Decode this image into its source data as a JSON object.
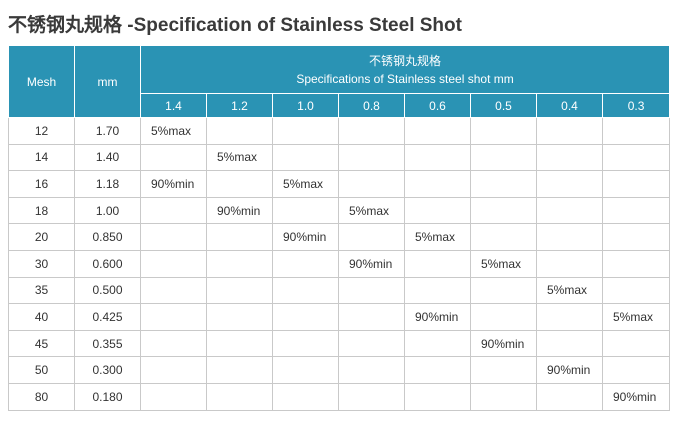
{
  "title": "不锈钢丸规格 -Specification of Stainless Steel Shot",
  "header": {
    "mesh": "Mesh",
    "mm": "mm",
    "group_cn": "不锈钢丸规格",
    "group_en": "Specifications of Stainless steel shot mm",
    "sizes": [
      "1.4",
      "1.2",
      "1.0",
      "0.8",
      "0.6",
      "0.5",
      "0.4",
      "0.3"
    ]
  },
  "rows": [
    {
      "mesh": "12",
      "mm": "1.70",
      "cells": [
        "5%max",
        "",
        "",
        "",
        "",
        "",
        "",
        ""
      ]
    },
    {
      "mesh": "14",
      "mm": "1.40",
      "cells": [
        "",
        "5%max",
        "",
        "",
        "",
        "",
        "",
        ""
      ]
    },
    {
      "mesh": "16",
      "mm": "1.18",
      "cells": [
        "90%min",
        "",
        "5%max",
        "",
        "",
        "",
        "",
        ""
      ]
    },
    {
      "mesh": "18",
      "mm": "1.00",
      "cells": [
        "",
        "90%min",
        "",
        "5%max",
        "",
        "",
        "",
        ""
      ]
    },
    {
      "mesh": "20",
      "mm": "0.850",
      "cells": [
        "",
        "",
        "90%min",
        "",
        "5%max",
        "",
        "",
        ""
      ]
    },
    {
      "mesh": "30",
      "mm": "0.600",
      "cells": [
        "",
        "",
        "",
        "90%min",
        "",
        "5%max",
        "",
        ""
      ]
    },
    {
      "mesh": "35",
      "mm": "0.500",
      "cells": [
        "",
        "",
        "",
        "",
        "",
        "",
        "5%max",
        ""
      ]
    },
    {
      "mesh": "40",
      "mm": "0.425",
      "cells": [
        "",
        "",
        "",
        "",
        "90%min",
        "",
        "",
        "5%max"
      ]
    },
    {
      "mesh": "45",
      "mm": "0.355",
      "cells": [
        "",
        "",
        "",
        "",
        "",
        "90%min",
        "",
        ""
      ]
    },
    {
      "mesh": "50",
      "mm": "0.300",
      "cells": [
        "",
        "",
        "",
        "",
        "",
        "",
        "90%min",
        ""
      ]
    },
    {
      "mesh": "80",
      "mm": "0.180",
      "cells": [
        "",
        "",
        "",
        "",
        "",
        "",
        "",
        "90%min"
      ]
    }
  ],
  "colors": {
    "header_bg": "#2a93b4",
    "header_text": "#ffffff",
    "grid": "#c9c9c9"
  }
}
